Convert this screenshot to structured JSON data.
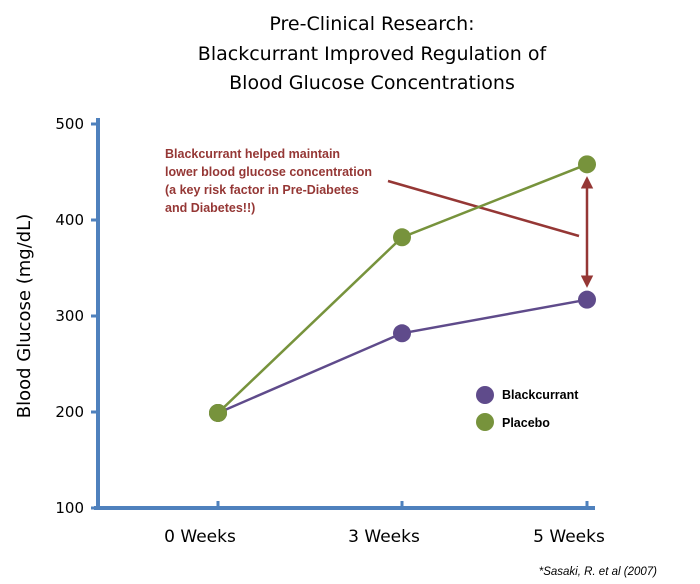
{
  "chart_data": {
    "type": "line",
    "title": [
      "Pre-Clinical Research:",
      "Blackcurrant Improved Regulation of",
      "Blood Glucose Concentrations"
    ],
    "xlabel": "",
    "ylabel": "Blood Glucose (mg/dL)",
    "categories": [
      "0 Weeks",
      "3 Weeks",
      "5 Weeks"
    ],
    "x": [
      0,
      3,
      5
    ],
    "ylim": [
      100,
      500
    ],
    "yticks": [
      100,
      200,
      300,
      400,
      500
    ],
    "grid": false,
    "legend_position": "lower-right",
    "series": [
      {
        "name": "Blackcurrant",
        "color": "#5f4b8b",
        "values": [
          199,
          282,
          317
        ]
      },
      {
        "name": "Placebo",
        "color": "#77933c",
        "values": [
          199,
          382,
          458
        ]
      }
    ],
    "annotation": {
      "lines": [
        "Blackcurrant helped maintain",
        "lower blood glucose concentration",
        "(a key risk factor in Pre-Diabetes",
        "and Diabetes!!)"
      ],
      "color": "#953735",
      "arrow_between": {
        "category": "5 Weeks",
        "from_series": "Placebo",
        "to_series": "Blackcurrant"
      }
    },
    "axis_color": "#4f81bd",
    "citation": "*Sasaki, R. et al (2007)"
  }
}
